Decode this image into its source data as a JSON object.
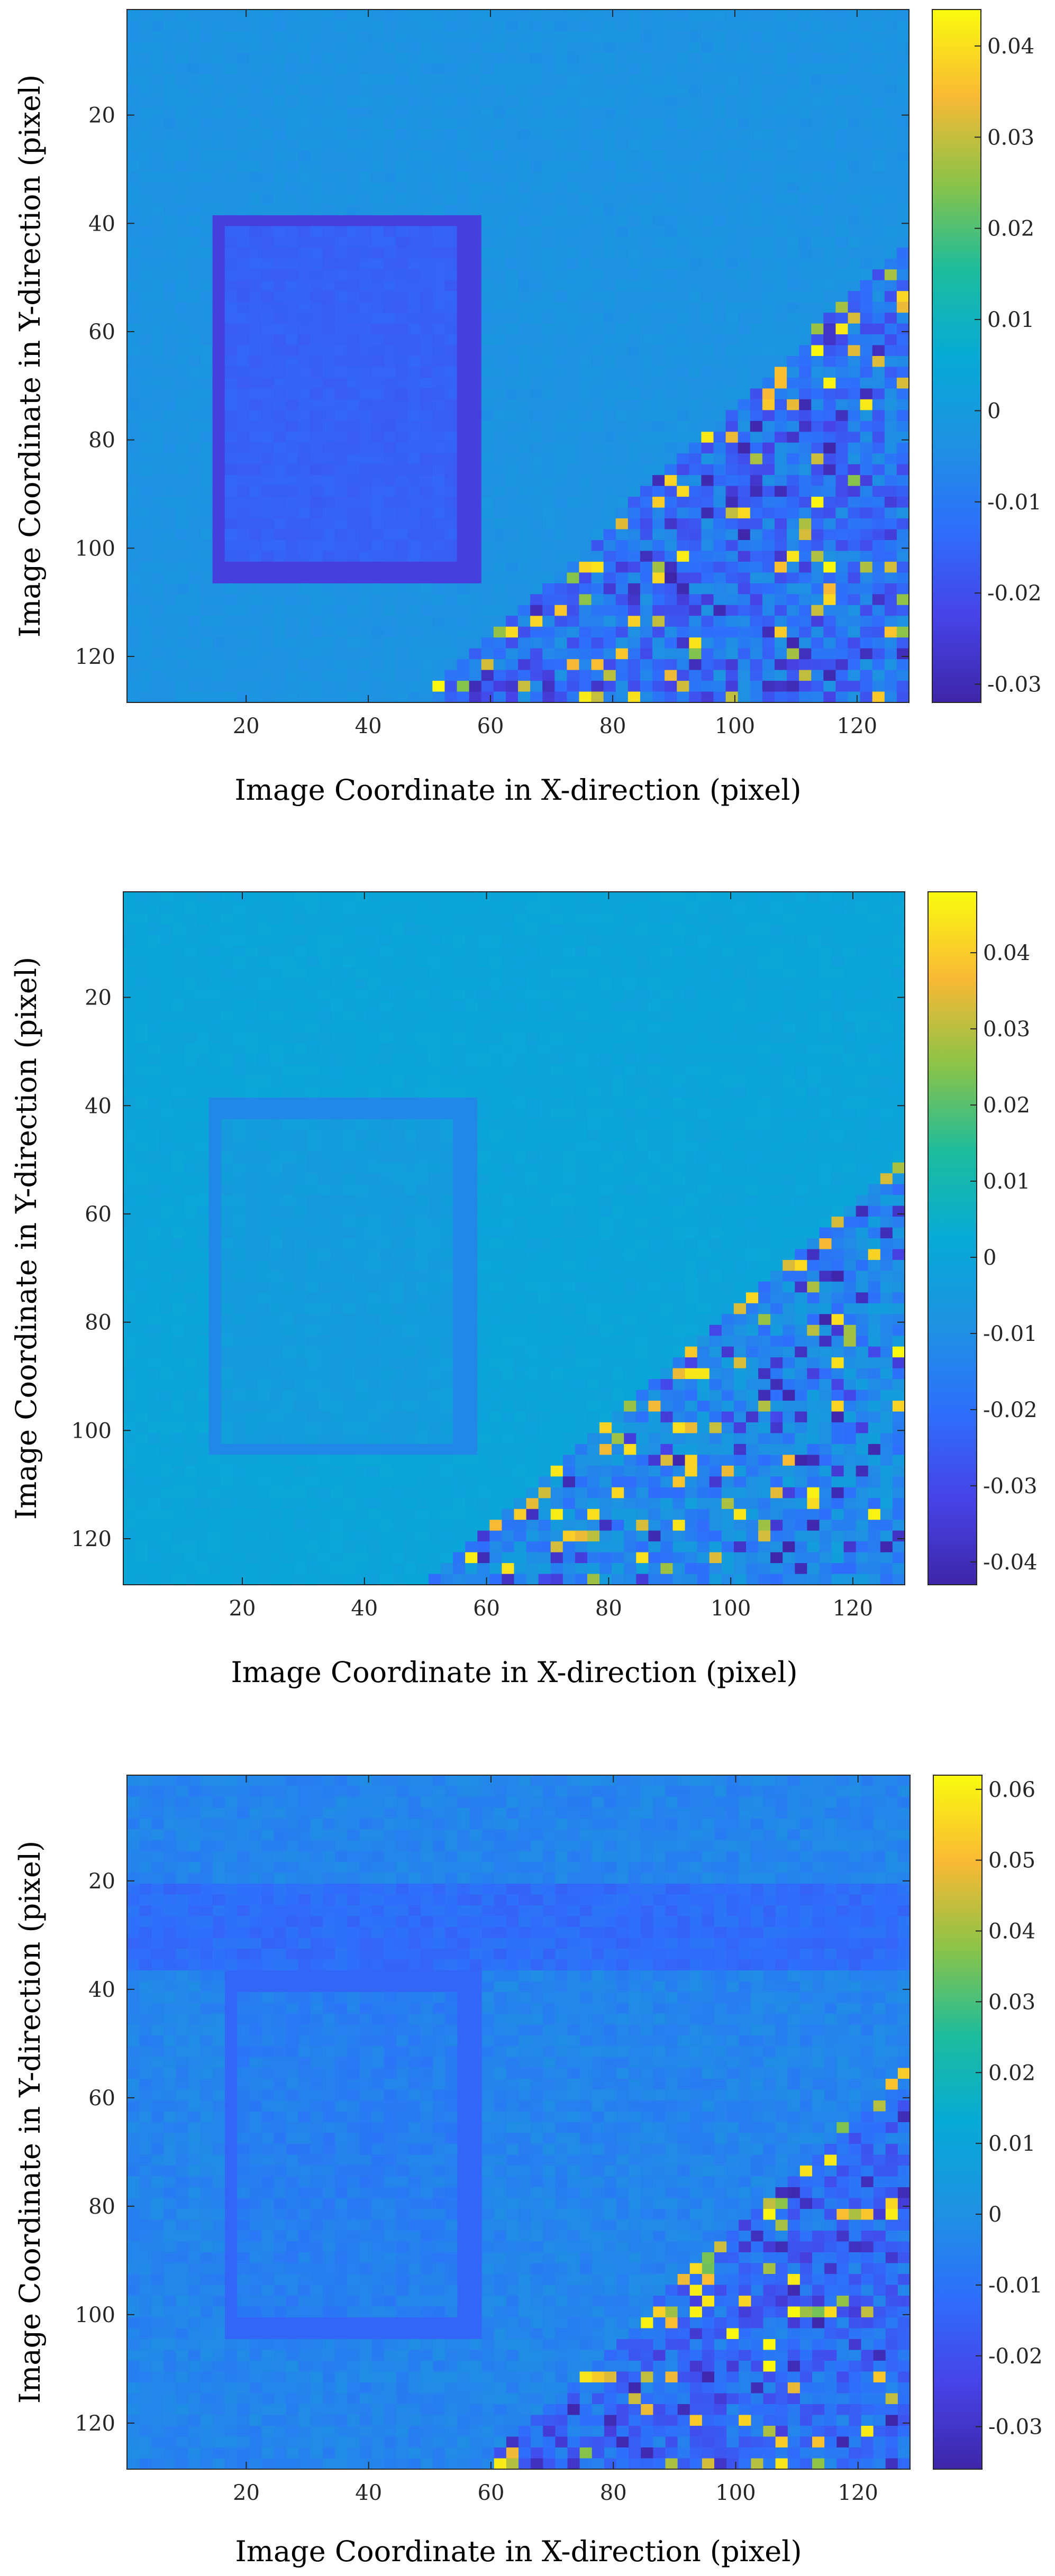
{
  "chart_data": [
    {
      "type": "heatmap",
      "title": "",
      "xlabel": "Image Coordinate in X-direction (pixel)",
      "ylabel": "Image Coordinate in Y-direction (pixel)",
      "xlim": [
        0.5,
        128.5
      ],
      "ylim": [
        0.5,
        128.5
      ],
      "y_reversed": true,
      "xticks": [
        20,
        40,
        60,
        80,
        100,
        120
      ],
      "yticks": [
        20,
        40,
        60,
        80,
        100,
        120
      ],
      "xtick_labels": [
        "20",
        "40",
        "60",
        "80",
        "100",
        "120"
      ],
      "ytick_labels": [
        "20",
        "40",
        "60",
        "80",
        "100",
        "120"
      ],
      "colorbar": {
        "range": [
          -0.032,
          0.044
        ],
        "ticks": [
          0.04,
          0.03,
          0.02,
          0.01,
          0,
          -0.01,
          -0.02,
          -0.03
        ],
        "tick_labels": [
          "0.04",
          "0.03",
          "0.02",
          "0.01",
          "0",
          "-0.01",
          "-0.02",
          "-0.03"
        ]
      },
      "features": {
        "rectangle": {
          "x": [
            15,
            58
          ],
          "y": [
            39,
            106
          ],
          "value": -0.016
        },
        "diagonal_edge": {
          "x_at_top": 128,
          "y_top": 45,
          "x_at_bottom": 50,
          "y_bottom": 128
        },
        "background_value": -0.003
      }
    },
    {
      "type": "heatmap",
      "title": "",
      "xlabel": "Image Coordinate in X-direction (pixel)",
      "ylabel": "Image Coordinate in Y-direction (pixel)",
      "xlim": [
        0.5,
        128.5
      ],
      "ylim": [
        0.5,
        128.5
      ],
      "y_reversed": true,
      "xticks": [
        20,
        40,
        60,
        80,
        100,
        120
      ],
      "yticks": [
        20,
        40,
        60,
        80,
        100,
        120
      ],
      "xtick_labels": [
        "20",
        "40",
        "60",
        "80",
        "100",
        "120"
      ],
      "ytick_labels": [
        "20",
        "40",
        "60",
        "80",
        "100",
        "120"
      ],
      "colorbar": {
        "range": [
          -0.043,
          0.048
        ],
        "ticks": [
          0.04,
          0.03,
          0.02,
          0.01,
          0,
          -0.01,
          -0.02,
          -0.03,
          -0.04
        ],
        "tick_labels": [
          "0.04",
          "0.03",
          "0.02",
          "0.01",
          "0",
          "-0.01",
          "-0.02",
          "-0.03",
          "-0.04"
        ]
      },
      "features": {
        "rectangle": {
          "x": [
            15,
            58
          ],
          "y": [
            40,
            105
          ],
          "value": -0.004
        },
        "diagonal_edge": {
          "x_at_top": 128,
          "y_top": 50,
          "x_at_bottom": 50,
          "y_bottom": 128
        },
        "background_value": 0.0
      }
    },
    {
      "type": "heatmap",
      "title": "",
      "xlabel": "Image Coordinate in X-direction (pixel)",
      "ylabel": "Image Coordinate in Y-direction (pixel)",
      "xlim": [
        0.5,
        128.5
      ],
      "ylim": [
        0.5,
        128.5
      ],
      "y_reversed": true,
      "xticks": [
        20,
        40,
        60,
        80,
        100,
        120
      ],
      "yticks": [
        20,
        40,
        60,
        80,
        100,
        120
      ],
      "xtick_labels": [
        "20",
        "40",
        "60",
        "80",
        "100",
        "120"
      ],
      "ytick_labels": [
        "20",
        "40",
        "60",
        "80",
        "100",
        "120"
      ],
      "colorbar": {
        "range": [
          -0.036,
          0.062
        ],
        "ticks": [
          0.06,
          0.05,
          0.04,
          0.03,
          0.02,
          0.01,
          0,
          -0.01,
          -0.02,
          -0.03
        ],
        "tick_labels": [
          "0.06",
          "0.05",
          "0.04",
          "0.03",
          "0.02",
          "0.01",
          "0",
          "-0.01",
          "-0.02",
          "-0.03"
        ]
      },
      "features": {
        "rectangle": {
          "x": [
            17,
            58
          ],
          "y": [
            38,
            104
          ],
          "value": -0.006
        },
        "band": {
          "y": [
            22,
            36
          ],
          "value": -0.012
        },
        "diagonal_edge": {
          "x_at_top": 128,
          "y_top": 55,
          "x_at_bottom": 60,
          "y_bottom": 128
        },
        "background_value": -0.004
      }
    }
  ]
}
